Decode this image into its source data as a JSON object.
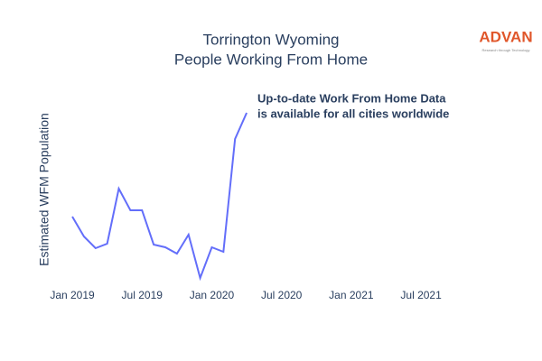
{
  "chart_data": {
    "type": "line",
    "title": "Torrington Wyoming",
    "subtitle": "People Working From Home",
    "y_label": "Estimated WFM Population",
    "annotation": [
      "Up-to-date Work From Home Data",
      "is available for all cities worldwide"
    ],
    "logo": {
      "name": "ADVAN",
      "tagline": "Research through Technology"
    },
    "x": [
      "2019-01",
      "2019-02",
      "2019-03",
      "2019-04",
      "2019-05",
      "2019-06",
      "2019-07",
      "2019-08",
      "2019-09",
      "2019-10",
      "2019-11",
      "2019-12",
      "2020-01",
      "2020-02",
      "2020-03",
      "2020-04"
    ],
    "series": [
      {
        "name": "Estimated WFM Population",
        "color": "#636efa",
        "values": [
          37.5,
          26.5,
          20,
          22.5,
          53,
          41,
          41,
          22,
          20.5,
          17,
          27.5,
          3.5,
          20.5,
          18,
          80.5,
          95
        ]
      }
    ],
    "xlim": [
      "2018-11",
      "2022-01"
    ],
    "xticks": [
      {
        "value": "2019-01",
        "label": "Jan 2019"
      },
      {
        "value": "2019-07",
        "label": "Jul 2019"
      },
      {
        "value": "2020-01",
        "label": "Jan 2020"
      },
      {
        "value": "2020-07",
        "label": "Jul 2020"
      },
      {
        "value": "2021-01",
        "label": "Jan 2021"
      },
      {
        "value": "2021-07",
        "label": "Jul 2021"
      }
    ],
    "ylim": [
      0,
      100
    ],
    "grid": false
  }
}
